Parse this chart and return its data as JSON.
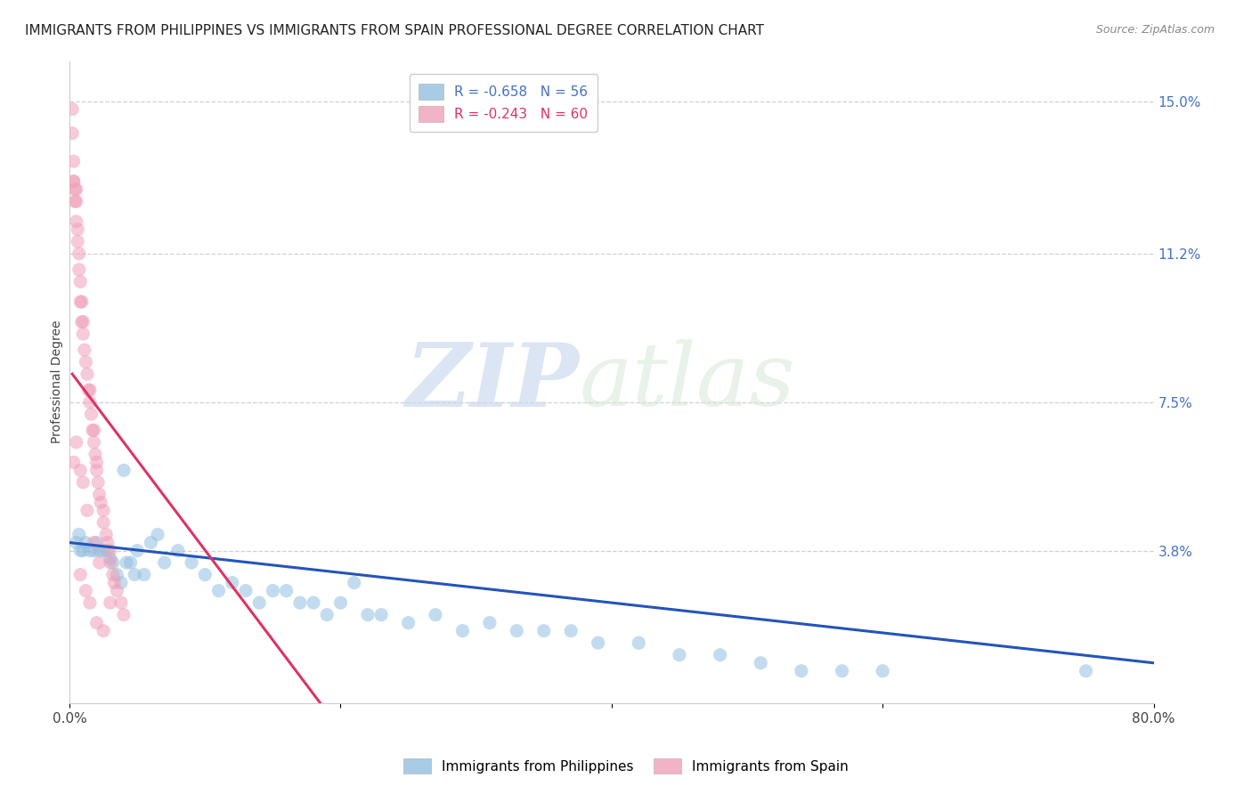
{
  "title": "IMMIGRANTS FROM PHILIPPINES VS IMMIGRANTS FROM SPAIN PROFESSIONAL DEGREE CORRELATION CHART",
  "source": "Source: ZipAtlas.com",
  "ylabel": "Professional Degree",
  "right_yticks": [
    0.038,
    0.075,
    0.112,
    0.15
  ],
  "right_yticklabels": [
    "3.8%",
    "7.5%",
    "11.2%",
    "15.0%"
  ],
  "xlim": [
    0.0,
    0.8
  ],
  "ylim": [
    0.0,
    0.16
  ],
  "watermark_zip": "ZIP",
  "watermark_atlas": "atlas",
  "legend_r1": "R = -0.658   N = 56",
  "legend_r2": "R = -0.243   N = 60",
  "legend_label_philippines": "Immigrants from Philippines",
  "legend_label_spain": "Immigrants from Spain",
  "blue_color": "#92bfe0",
  "pink_color": "#f0a0b8",
  "blue_line_color": "#2255bb",
  "pink_line_color": "#dd3366",
  "philippines_x": [
    0.005,
    0.007,
    0.008,
    0.01,
    0.012,
    0.015,
    0.018,
    0.02,
    0.022,
    0.025,
    0.028,
    0.03,
    0.032,
    0.035,
    0.038,
    0.04,
    0.042,
    0.045,
    0.048,
    0.05,
    0.055,
    0.06,
    0.065,
    0.07,
    0.08,
    0.09,
    0.1,
    0.11,
    0.12,
    0.13,
    0.14,
    0.15,
    0.16,
    0.17,
    0.18,
    0.19,
    0.2,
    0.21,
    0.22,
    0.23,
    0.25,
    0.27,
    0.29,
    0.31,
    0.33,
    0.35,
    0.37,
    0.39,
    0.42,
    0.45,
    0.48,
    0.51,
    0.54,
    0.57,
    0.6,
    0.75
  ],
  "philippines_y": [
    0.04,
    0.042,
    0.038,
    0.038,
    0.04,
    0.038,
    0.038,
    0.04,
    0.038,
    0.038,
    0.038,
    0.036,
    0.035,
    0.032,
    0.03,
    0.058,
    0.035,
    0.035,
    0.032,
    0.038,
    0.032,
    0.04,
    0.042,
    0.035,
    0.038,
    0.035,
    0.032,
    0.028,
    0.03,
    0.028,
    0.025,
    0.028,
    0.028,
    0.025,
    0.025,
    0.022,
    0.025,
    0.03,
    0.022,
    0.022,
    0.02,
    0.022,
    0.018,
    0.02,
    0.018,
    0.018,
    0.018,
    0.015,
    0.015,
    0.012,
    0.012,
    0.01,
    0.008,
    0.008,
    0.008,
    0.008
  ],
  "spain_x": [
    0.002,
    0.002,
    0.003,
    0.003,
    0.003,
    0.004,
    0.004,
    0.005,
    0.005,
    0.005,
    0.006,
    0.006,
    0.007,
    0.007,
    0.008,
    0.008,
    0.009,
    0.009,
    0.01,
    0.01,
    0.011,
    0.012,
    0.013,
    0.014,
    0.015,
    0.015,
    0.016,
    0.017,
    0.018,
    0.018,
    0.019,
    0.02,
    0.02,
    0.021,
    0.022,
    0.023,
    0.025,
    0.025,
    0.027,
    0.028,
    0.03,
    0.03,
    0.032,
    0.033,
    0.035,
    0.038,
    0.04,
    0.003,
    0.005,
    0.008,
    0.01,
    0.013,
    0.018,
    0.022,
    0.03,
    0.008,
    0.012,
    0.015,
    0.02,
    0.025
  ],
  "spain_y": [
    0.148,
    0.142,
    0.135,
    0.13,
    0.13,
    0.128,
    0.125,
    0.125,
    0.12,
    0.128,
    0.115,
    0.118,
    0.112,
    0.108,
    0.105,
    0.1,
    0.1,
    0.095,
    0.095,
    0.092,
    0.088,
    0.085,
    0.082,
    0.078,
    0.078,
    0.075,
    0.072,
    0.068,
    0.065,
    0.068,
    0.062,
    0.06,
    0.058,
    0.055,
    0.052,
    0.05,
    0.048,
    0.045,
    0.042,
    0.04,
    0.038,
    0.035,
    0.032,
    0.03,
    0.028,
    0.025,
    0.022,
    0.06,
    0.065,
    0.058,
    0.055,
    0.048,
    0.04,
    0.035,
    0.025,
    0.032,
    0.028,
    0.025,
    0.02,
    0.018
  ],
  "blue_line_x": [
    0.0,
    0.8
  ],
  "blue_line_y": [
    0.04,
    0.01
  ],
  "pink_line_x": [
    0.002,
    0.185
  ],
  "pink_line_y": [
    0.082,
    0.0
  ],
  "grid_color": "#d0d0d0",
  "background_color": "#ffffff",
  "title_fontsize": 11,
  "axis_label_fontsize": 10,
  "tick_fontsize": 11,
  "legend_fontsize": 11,
  "source_fontsize": 9
}
